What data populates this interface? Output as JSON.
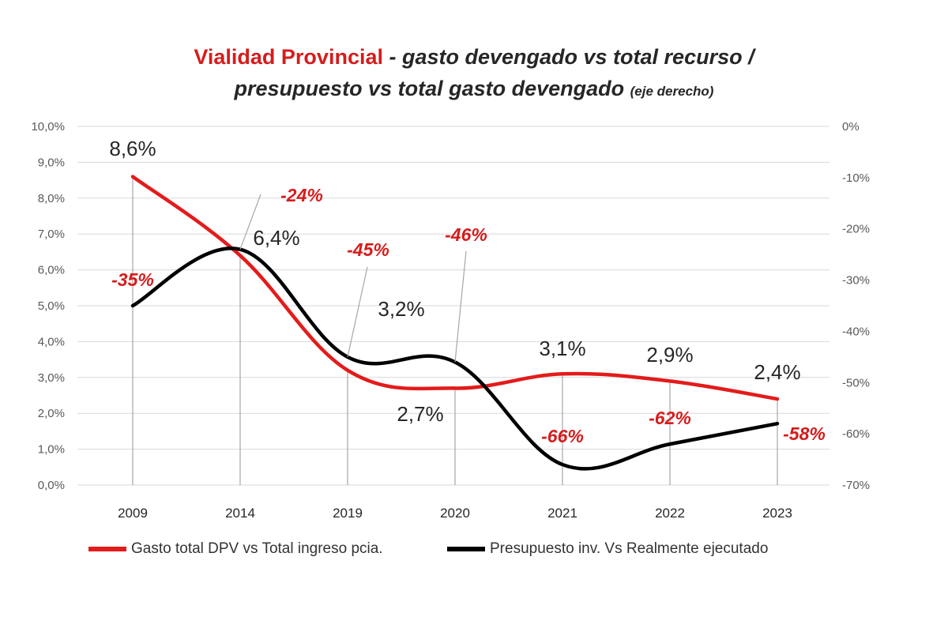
{
  "header": {
    "title_main": "Vialidad Provincial",
    "title_rest": " - gasto devengado vs total recurso /",
    "title_line2": "presupuesto  vs total gasto devengado",
    "title_note": "(eje derecho)"
  },
  "colors": {
    "series1": "#e31b1b",
    "series2": "#000000",
    "grid": "#d9d9d9",
    "axis_text": "#595959",
    "label_red": "#d61c1c",
    "label_dark": "#262626"
  },
  "chart_data": {
    "type": "line",
    "title": "Vialidad Provincial - gasto devengado vs total recurso / presupuesto vs total gasto devengado (eje derecho)",
    "categories": [
      "2009",
      "2014",
      "2019",
      "2020",
      "2021",
      "2022",
      "2023"
    ],
    "y_left": {
      "ticks": [
        "0,0%",
        "1,0%",
        "2,0%",
        "3,0%",
        "4,0%",
        "5,0%",
        "6,0%",
        "7,0%",
        "8,0%",
        "9,0%",
        "10,0%"
      ],
      "range": [
        0,
        10
      ]
    },
    "y_right": {
      "ticks": [
        "-70%",
        "-60%",
        "-50%",
        "-40%",
        "-30%",
        "-20%",
        "-10%",
        "0%"
      ],
      "range": [
        -70,
        0
      ]
    },
    "grid": true,
    "legend_position": "bottom",
    "series": [
      {
        "name": "Gasto total DPV vs Total ingreso pcia.",
        "axis": "left",
        "color": "#e31b1b",
        "values": [
          8.6,
          6.4,
          3.2,
          2.7,
          3.1,
          2.9,
          2.4
        ],
        "labels": [
          "8,6%",
          "6,4%",
          "3,2%",
          "2,7%",
          "3,1%",
          "2,9%",
          "2,4%"
        ]
      },
      {
        "name": "Presupuesto inv. Vs Realmente ejecutado",
        "axis": "right",
        "color": "#000000",
        "values": [
          -35,
          -24,
          -45,
          -46,
          -66,
          -62,
          -58
        ],
        "labels": [
          "-35%",
          "-24%",
          "-45%",
          "-46%",
          "-66%",
          "-62%",
          "-58%"
        ]
      }
    ]
  }
}
